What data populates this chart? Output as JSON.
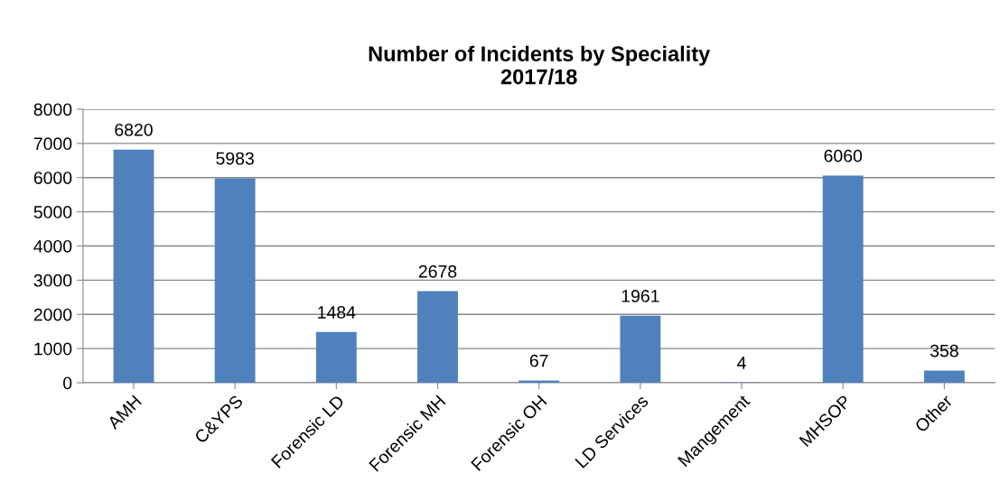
{
  "chart_data": {
    "type": "bar",
    "title": "Number of Incidents by Speciality\n2017/18",
    "categories": [
      "AMH",
      "C&YPS",
      "Forensic LD",
      "Forensic MH",
      "Forensic OH",
      "LD Services",
      "Mangement",
      "MHSOP",
      "Other"
    ],
    "values": [
      6820,
      5983,
      1484,
      2678,
      67,
      1961,
      4,
      6060,
      358
    ],
    "color": "#4f81bd",
    "ylim": [
      0,
      8000
    ],
    "yticks": [
      0,
      1000,
      2000,
      3000,
      4000,
      5000,
      6000,
      7000,
      8000
    ],
    "grid": "y",
    "data_labels": true
  }
}
